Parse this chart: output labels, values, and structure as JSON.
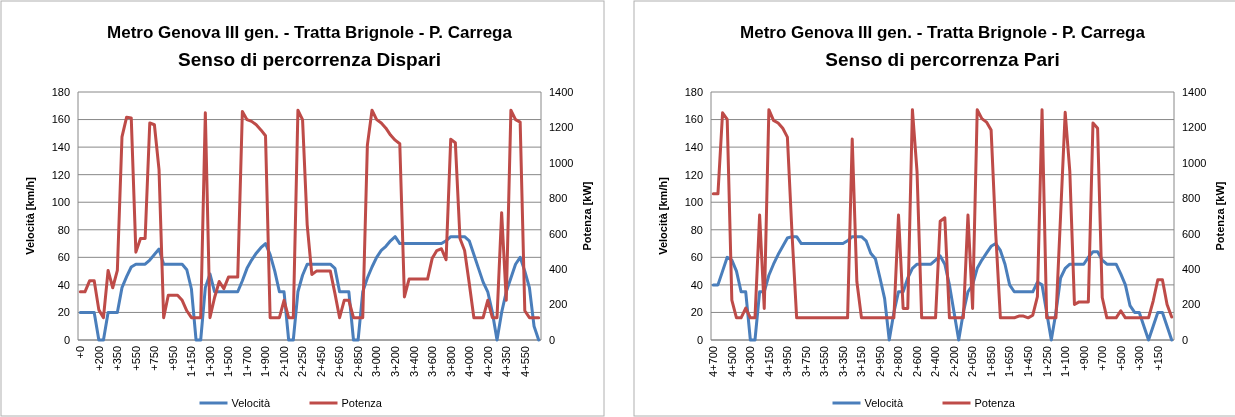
{
  "chart_data": [
    {
      "type": "line",
      "title": "Metro Genova III gen. - Tratta Brignole - P. Carrega",
      "subtitle": "Senso di percorrenza Dispari",
      "ylabel": "Velocità  [km/h]",
      "y2label": "Potenza  [kW]",
      "categories": [
        "+0",
        null,
        null,
        null,
        "+200",
        null,
        null,
        null,
        "+350",
        null,
        null,
        null,
        "+550",
        null,
        null,
        null,
        "+750",
        null,
        null,
        null,
        "+950",
        null,
        null,
        null,
        "1+150",
        null,
        null,
        null,
        "1+300",
        null,
        null,
        null,
        "1+500",
        null,
        null,
        null,
        "1+700",
        null,
        null,
        null,
        "1+900",
        null,
        null,
        null,
        "2+100",
        null,
        null,
        null,
        "2+250",
        null,
        null,
        null,
        "2+450",
        null,
        null,
        null,
        "2+650",
        null,
        null,
        null,
        "2+850",
        null,
        null,
        null,
        "3+000",
        null,
        null,
        null,
        "3+200",
        null,
        null,
        null,
        "3+400",
        null,
        null,
        null,
        "3+600",
        null,
        null,
        null,
        "3+800",
        null,
        null,
        null,
        "4+000",
        null,
        null,
        null,
        "4+200",
        null,
        null,
        null,
        "4+350",
        null,
        null,
        null,
        "4+550",
        null,
        null,
        null
      ],
      "series": [
        {
          "name": "Velocità",
          "color": "#4a7ebb",
          "values": [
            20,
            20,
            20,
            20,
            0,
            0,
            20,
            20,
            20,
            38,
            46,
            53,
            55,
            55,
            55,
            58,
            62,
            66,
            55,
            55,
            55,
            55,
            55,
            51,
            37,
            0,
            0,
            38,
            48,
            35,
            35,
            35,
            35,
            35,
            35,
            43,
            52,
            58,
            63,
            67,
            70,
            62,
            50,
            35,
            35,
            0,
            0,
            35,
            47,
            55,
            55,
            55,
            55,
            55,
            55,
            52,
            35,
            35,
            35,
            0,
            0,
            35,
            45,
            53,
            60,
            65,
            68,
            72,
            75,
            70,
            70,
            70,
            70,
            70,
            70,
            70,
            70,
            70,
            70,
            72,
            75,
            75,
            75,
            75,
            72,
            62,
            52,
            42,
            35,
            20,
            0,
            20,
            35,
            45,
            55,
            60,
            50,
            38,
            10,
            0
          ]
        },
        {
          "name": "Potenza",
          "color": "#be4b48",
          "axis": "y2",
          "values": [
            272,
            272,
            334,
            334,
            170,
            126,
            393,
            295,
            393,
            1147,
            1258,
            1254,
            496,
            573,
            573,
            1225,
            1215,
            962,
            126,
            253,
            253,
            253,
            224,
            165,
            126,
            126,
            126,
            1283,
            126,
            240,
            330,
            290,
            355,
            355,
            355,
            1290,
            1244,
            1234,
            1215,
            1186,
            1153,
            126,
            126,
            126,
            224,
            126,
            126,
            1297,
            1244,
            650,
            370,
            389,
            389,
            389,
            389,
            262,
            126,
            224,
            224,
            126,
            126,
            126,
            1100,
            1297,
            1244,
            1225,
            1196,
            1157,
            1128,
            1108,
            243,
            344,
            344,
            344,
            344,
            344,
            461,
            505,
            515,
            453,
            1133,
            1114,
            573,
            505,
            320,
            126,
            126,
            126,
            224,
            126,
            126,
            719,
            224,
            1297,
            1244,
            1230,
            165,
            126,
            126,
            126
          ]
        }
      ],
      "ylim": [
        0,
        180
      ],
      "yticks": [
        0,
        20,
        40,
        60,
        80,
        100,
        120,
        140,
        160,
        180
      ],
      "y2lim": [
        0,
        1400
      ],
      "y2ticks": [
        0,
        200,
        400,
        600,
        800,
        1000,
        1200,
        1400
      ],
      "grid": "y",
      "legend": "bottom"
    },
    {
      "type": "line",
      "title": "Metro Genova III gen. - Tratta Brignole - P. Carrega",
      "subtitle": "Senso di percorrenza Pari",
      "ylabel": "Velocità  [km/h]",
      "y2label": "Potenza  [kW]",
      "categories": [
        "4+700",
        null,
        null,
        null,
        "4+500",
        null,
        null,
        null,
        "4+300",
        null,
        null,
        null,
        "4+150",
        null,
        null,
        null,
        "3+950",
        null,
        null,
        null,
        "3+750",
        null,
        null,
        null,
        "3+550",
        null,
        null,
        null,
        "3+350",
        null,
        null,
        null,
        "3+150",
        null,
        null,
        null,
        "2+950",
        null,
        null,
        null,
        "2+800",
        null,
        null,
        null,
        "2+600",
        null,
        null,
        null,
        "2+400",
        null,
        null,
        null,
        "2+200",
        null,
        null,
        null,
        "2+050",
        null,
        null,
        null,
        "1+850",
        null,
        null,
        null,
        "1+650",
        null,
        null,
        null,
        "1+450",
        null,
        null,
        null,
        "1+250",
        null,
        null,
        null,
        "1+100",
        null,
        null,
        null,
        "+900",
        null,
        null,
        null,
        "+700",
        null,
        null,
        null,
        "+500",
        null,
        null,
        null,
        "+300",
        null,
        null,
        null,
        "+150",
        null,
        null,
        null
      ],
      "series": [
        {
          "name": "Velocità",
          "color": "#4a7ebb",
          "values": [
            40,
            40,
            50,
            60,
            58,
            50,
            35,
            35,
            0,
            0,
            35,
            35,
            47,
            55,
            62,
            68,
            74,
            75,
            75,
            70,
            70,
            70,
            70,
            70,
            70,
            70,
            70,
            70,
            70,
            72,
            75,
            75,
            75,
            72,
            63,
            59,
            45,
            30,
            0,
            20,
            35,
            35,
            45,
            52,
            55,
            55,
            55,
            55,
            58,
            61,
            55,
            40,
            20,
            0,
            20,
            35,
            40,
            52,
            58,
            63,
            68,
            70,
            65,
            55,
            40,
            35,
            35,
            35,
            35,
            35,
            42,
            40,
            20,
            0,
            20,
            45,
            52,
            55,
            55,
            55,
            55,
            60,
            64,
            64,
            58,
            55,
            55,
            55,
            48,
            40,
            25,
            20,
            20,
            10,
            0,
            10,
            20,
            20,
            10,
            0
          ]
        },
        {
          "name": "Potenza",
          "color": "#be4b48",
          "axis": "y2",
          "values": [
            825,
            825,
            1283,
            1245,
            225,
            125,
            125,
            180,
            125,
            125,
            705,
            178,
            1300,
            1240,
            1225,
            1195,
            1145,
            600,
            125,
            125,
            125,
            125,
            125,
            125,
            125,
            125,
            125,
            125,
            125,
            125,
            1135,
            330,
            125,
            125,
            125,
            125,
            125,
            125,
            125,
            125,
            705,
            178,
            178,
            1300,
            950,
            125,
            125,
            125,
            125,
            670,
            690,
            125,
            125,
            125,
            125,
            705,
            178,
            1300,
            1250,
            1230,
            1185,
            600,
            125,
            125,
            125,
            125,
            135,
            135,
            125,
            140,
            245,
            1300,
            125,
            125,
            125,
            700,
            1285,
            950,
            200,
            215,
            215,
            215,
            1225,
            1195,
            240,
            125,
            125,
            125,
            165,
            125,
            125,
            125,
            125,
            125,
            125,
            220,
            340,
            340,
            200,
            130
          ]
        }
      ],
      "ylim": [
        0,
        180
      ],
      "yticks": [
        0,
        20,
        40,
        60,
        80,
        100,
        120,
        140,
        160,
        180
      ],
      "y2lim": [
        0,
        1400
      ],
      "y2ticks": [
        0,
        200,
        400,
        600,
        800,
        1000,
        1200,
        1400
      ],
      "grid": "y",
      "legend": "bottom"
    }
  ]
}
